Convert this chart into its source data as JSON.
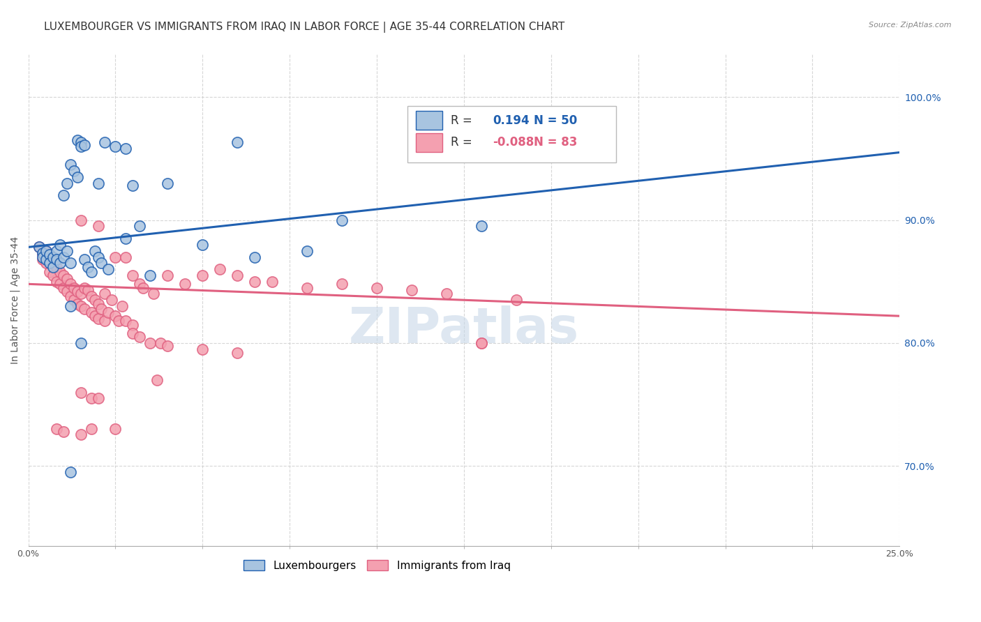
{
  "title": "LUXEMBOURGER VS IMMIGRANTS FROM IRAQ IN LABOR FORCE | AGE 35-44 CORRELATION CHART",
  "source": "Source: ZipAtlas.com",
  "ylabel": "In Labor Force | Age 35-44",
  "right_yticks": [
    "100.0%",
    "90.0%",
    "80.0%",
    "70.0%"
  ],
  "right_ytick_vals": [
    1.0,
    0.9,
    0.8,
    0.7
  ],
  "xmin": 0.0,
  "xmax": 0.25,
  "ymin": 0.635,
  "ymax": 1.035,
  "lux_color": "#a8c4e0",
  "iraq_color": "#f4a0b0",
  "lux_line_color": "#2060b0",
  "iraq_line_color": "#e06080",
  "lux_R": "0.194",
  "lux_N": "50",
  "iraq_R": "-0.088",
  "iraq_N": "83",
  "lux_trend": [
    0.878,
    0.955
  ],
  "iraq_trend": [
    0.848,
    0.822
  ],
  "lux_scatter": [
    [
      0.003,
      0.878
    ],
    [
      0.004,
      0.873
    ],
    [
      0.004,
      0.87
    ],
    [
      0.005,
      0.868
    ],
    [
      0.005,
      0.875
    ],
    [
      0.006,
      0.872
    ],
    [
      0.006,
      0.865
    ],
    [
      0.007,
      0.862
    ],
    [
      0.007,
      0.87
    ],
    [
      0.008,
      0.875
    ],
    [
      0.008,
      0.868
    ],
    [
      0.009,
      0.865
    ],
    [
      0.009,
      0.88
    ],
    [
      0.01,
      0.87
    ],
    [
      0.01,
      0.92
    ],
    [
      0.011,
      0.93
    ],
    [
      0.011,
      0.875
    ],
    [
      0.012,
      0.945
    ],
    [
      0.012,
      0.865
    ],
    [
      0.013,
      0.94
    ],
    [
      0.014,
      0.935
    ],
    [
      0.014,
      0.965
    ],
    [
      0.015,
      0.963
    ],
    [
      0.015,
      0.96
    ],
    [
      0.016,
      0.961
    ],
    [
      0.016,
      0.868
    ],
    [
      0.017,
      0.862
    ],
    [
      0.018,
      0.858
    ],
    [
      0.019,
      0.875
    ],
    [
      0.02,
      0.93
    ],
    [
      0.02,
      0.87
    ],
    [
      0.021,
      0.865
    ],
    [
      0.022,
      0.963
    ],
    [
      0.023,
      0.86
    ],
    [
      0.025,
      0.96
    ],
    [
      0.028,
      0.958
    ],
    [
      0.028,
      0.885
    ],
    [
      0.03,
      0.928
    ],
    [
      0.032,
      0.895
    ],
    [
      0.035,
      0.855
    ],
    [
      0.04,
      0.93
    ],
    [
      0.05,
      0.88
    ],
    [
      0.06,
      0.963
    ],
    [
      0.065,
      0.87
    ],
    [
      0.08,
      0.875
    ],
    [
      0.09,
      0.9
    ],
    [
      0.13,
      0.895
    ],
    [
      0.012,
      0.83
    ],
    [
      0.015,
      0.8
    ],
    [
      0.012,
      0.695
    ]
  ],
  "iraq_scatter": [
    [
      0.003,
      0.878
    ],
    [
      0.004,
      0.872
    ],
    [
      0.004,
      0.868
    ],
    [
      0.005,
      0.875
    ],
    [
      0.005,
      0.865
    ],
    [
      0.006,
      0.87
    ],
    [
      0.006,
      0.858
    ],
    [
      0.007,
      0.865
    ],
    [
      0.007,
      0.855
    ],
    [
      0.008,
      0.862
    ],
    [
      0.008,
      0.85
    ],
    [
      0.009,
      0.858
    ],
    [
      0.009,
      0.848
    ],
    [
      0.01,
      0.855
    ],
    [
      0.01,
      0.845
    ],
    [
      0.011,
      0.852
    ],
    [
      0.011,
      0.842
    ],
    [
      0.012,
      0.848
    ],
    [
      0.012,
      0.838
    ],
    [
      0.013,
      0.845
    ],
    [
      0.013,
      0.835
    ],
    [
      0.014,
      0.842
    ],
    [
      0.014,
      0.832
    ],
    [
      0.015,
      0.9
    ],
    [
      0.015,
      0.84
    ],
    [
      0.015,
      0.83
    ],
    [
      0.016,
      0.845
    ],
    [
      0.016,
      0.828
    ],
    [
      0.017,
      0.843
    ],
    [
      0.018,
      0.838
    ],
    [
      0.018,
      0.825
    ],
    [
      0.019,
      0.835
    ],
    [
      0.019,
      0.822
    ],
    [
      0.02,
      0.895
    ],
    [
      0.02,
      0.832
    ],
    [
      0.02,
      0.82
    ],
    [
      0.021,
      0.828
    ],
    [
      0.022,
      0.84
    ],
    [
      0.022,
      0.818
    ],
    [
      0.023,
      0.825
    ],
    [
      0.024,
      0.835
    ],
    [
      0.025,
      0.87
    ],
    [
      0.025,
      0.822
    ],
    [
      0.026,
      0.818
    ],
    [
      0.027,
      0.83
    ],
    [
      0.028,
      0.87
    ],
    [
      0.028,
      0.818
    ],
    [
      0.03,
      0.855
    ],
    [
      0.03,
      0.815
    ],
    [
      0.03,
      0.808
    ],
    [
      0.032,
      0.848
    ],
    [
      0.032,
      0.805
    ],
    [
      0.033,
      0.845
    ],
    [
      0.035,
      0.8
    ],
    [
      0.036,
      0.84
    ],
    [
      0.037,
      0.77
    ],
    [
      0.038,
      0.8
    ],
    [
      0.04,
      0.855
    ],
    [
      0.04,
      0.798
    ],
    [
      0.045,
      0.848
    ],
    [
      0.05,
      0.855
    ],
    [
      0.05,
      0.795
    ],
    [
      0.055,
      0.86
    ],
    [
      0.06,
      0.855
    ],
    [
      0.06,
      0.792
    ],
    [
      0.065,
      0.85
    ],
    [
      0.07,
      0.85
    ],
    [
      0.08,
      0.845
    ],
    [
      0.09,
      0.848
    ],
    [
      0.1,
      0.845
    ],
    [
      0.11,
      0.843
    ],
    [
      0.12,
      0.84
    ],
    [
      0.13,
      0.8
    ],
    [
      0.14,
      0.835
    ],
    [
      0.008,
      0.73
    ],
    [
      0.01,
      0.728
    ],
    [
      0.015,
      0.76
    ],
    [
      0.018,
      0.755
    ],
    [
      0.015,
      0.726
    ],
    [
      0.018,
      0.73
    ],
    [
      0.02,
      0.755
    ],
    [
      0.025,
      0.73
    ],
    [
      0.13,
      0.8
    ]
  ],
  "watermark_text": "ZIPatlas",
  "watermark_color": "#c8d8e8",
  "background_color": "#ffffff",
  "grid_color": "#cccccc",
  "title_fontsize": 11,
  "axis_label_fontsize": 10,
  "tick_fontsize": 9,
  "legend_fontsize": 11
}
